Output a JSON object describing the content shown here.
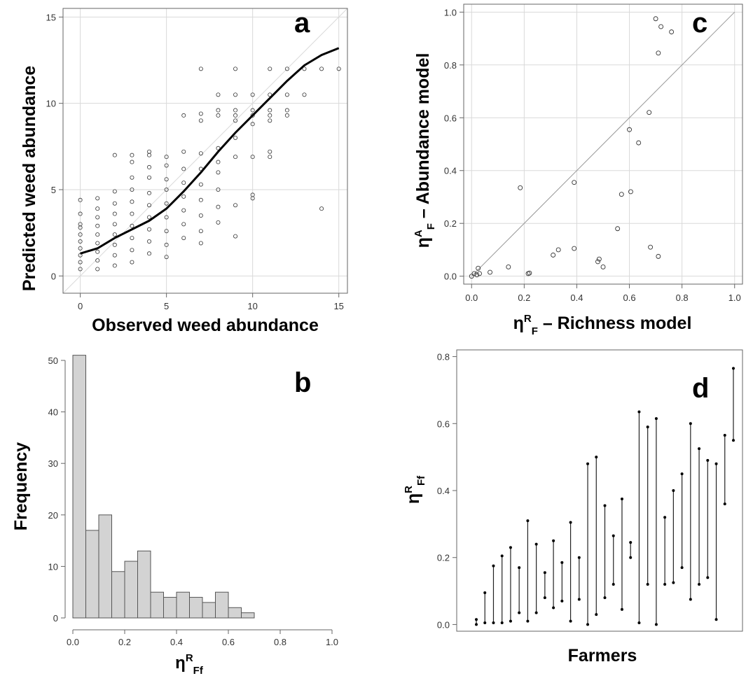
{
  "chart_data": [
    {
      "panel": "a",
      "type": "scatter",
      "xlabel": "Observed weed abundance",
      "ylabel": "Predicted weed abundance",
      "xlim": [
        -1,
        15.5
      ],
      "ylim": [
        -1,
        15.5
      ],
      "xticks": [
        0,
        5,
        10,
        15
      ],
      "yticks": [
        0,
        5,
        10,
        15
      ],
      "grid": true,
      "reference_line": "1:1",
      "points": [
        [
          0,
          0.4
        ],
        [
          0,
          0.8
        ],
        [
          0,
          1.2
        ],
        [
          0,
          1.6
        ],
        [
          0,
          2.0
        ],
        [
          0,
          2.4
        ],
        [
          0,
          2.8
        ],
        [
          0,
          3.0
        ],
        [
          0,
          3.6
        ],
        [
          0,
          4.4
        ],
        [
          1,
          0.4
        ],
        [
          1,
          0.9
        ],
        [
          1,
          1.4
        ],
        [
          1,
          1.9
        ],
        [
          1,
          2.4
        ],
        [
          1,
          2.9
        ],
        [
          1,
          3.4
        ],
        [
          1,
          3.9
        ],
        [
          1,
          4.5
        ],
        [
          2,
          0.6
        ],
        [
          2,
          1.2
        ],
        [
          2,
          1.8
        ],
        [
          2,
          2.4
        ],
        [
          2,
          3.0
        ],
        [
          2,
          3.6
        ],
        [
          2,
          4.2
        ],
        [
          2,
          4.9
        ],
        [
          2,
          7.0
        ],
        [
          3,
          0.8
        ],
        [
          3,
          1.5
        ],
        [
          3,
          2.2
        ],
        [
          3,
          2.9
        ],
        [
          3,
          3.6
        ],
        [
          3,
          4.3
        ],
        [
          3,
          5.0
        ],
        [
          3,
          5.7
        ],
        [
          3,
          6.6
        ],
        [
          3,
          7.0
        ],
        [
          4,
          1.3
        ],
        [
          4,
          2.0
        ],
        [
          4,
          2.7
        ],
        [
          4,
          3.4
        ],
        [
          4,
          4.1
        ],
        [
          4,
          4.8
        ],
        [
          4,
          5.7
        ],
        [
          4,
          6.3
        ],
        [
          4,
          7.0
        ],
        [
          4,
          7.2
        ],
        [
          5,
          1.1
        ],
        [
          5,
          1.8
        ],
        [
          5,
          2.6
        ],
        [
          5,
          3.4
        ],
        [
          5,
          4.2
        ],
        [
          5,
          5.0
        ],
        [
          5,
          5.6
        ],
        [
          5,
          6.4
        ],
        [
          5,
          6.9
        ],
        [
          6,
          2.2
        ],
        [
          6,
          3.0
        ],
        [
          6,
          3.8
        ],
        [
          6,
          4.6
        ],
        [
          6,
          5.4
        ],
        [
          6,
          6.2
        ],
        [
          6,
          7.2
        ],
        [
          6,
          9.3
        ],
        [
          7,
          1.9
        ],
        [
          7,
          2.6
        ],
        [
          7,
          3.5
        ],
        [
          7,
          4.4
        ],
        [
          7,
          5.3
        ],
        [
          7,
          6.2
        ],
        [
          7,
          7.1
        ],
        [
          7,
          9.0
        ],
        [
          7,
          9.4
        ],
        [
          7,
          12.0
        ],
        [
          8,
          3.1
        ],
        [
          8,
          4.0
        ],
        [
          8,
          5.0
        ],
        [
          8,
          6.0
        ],
        [
          8,
          6.6
        ],
        [
          8,
          7.4
        ],
        [
          8,
          9.3
        ],
        [
          8,
          9.6
        ],
        [
          8,
          10.5
        ],
        [
          9,
          2.3
        ],
        [
          9,
          4.1
        ],
        [
          9,
          6.9
        ],
        [
          9,
          8.0
        ],
        [
          9,
          9.0
        ],
        [
          9,
          9.3
        ],
        [
          9,
          9.6
        ],
        [
          9,
          10.5
        ],
        [
          9,
          12.0
        ],
        [
          10,
          4.5
        ],
        [
          10,
          4.7
        ],
        [
          10,
          6.9
        ],
        [
          10,
          8.8
        ],
        [
          10,
          9.3
        ],
        [
          10,
          9.6
        ],
        [
          10,
          10.5
        ],
        [
          11,
          6.9
        ],
        [
          11,
          7.2
        ],
        [
          11,
          9.0
        ],
        [
          11,
          9.3
        ],
        [
          11,
          9.6
        ],
        [
          11,
          10.5
        ],
        [
          11,
          12.0
        ],
        [
          12,
          9.3
        ],
        [
          12,
          9.6
        ],
        [
          12,
          10.5
        ],
        [
          12,
          12.0
        ],
        [
          13,
          10.5
        ],
        [
          13,
          12.0
        ],
        [
          14,
          3.9
        ],
        [
          14,
          12.0
        ],
        [
          15,
          12.0
        ]
      ],
      "smooth_curve": [
        [
          0,
          1.3
        ],
        [
          1,
          1.6
        ],
        [
          2,
          2.2
        ],
        [
          3,
          2.7
        ],
        [
          4,
          3.2
        ],
        [
          5,
          3.9
        ],
        [
          6,
          4.9
        ],
        [
          7,
          6.0
        ],
        [
          8,
          7.2
        ],
        [
          9,
          8.3
        ],
        [
          10,
          9.3
        ],
        [
          11,
          10.3
        ],
        [
          12,
          11.3
        ],
        [
          13,
          12.2
        ],
        [
          14,
          12.8
        ],
        [
          15,
          13.2
        ]
      ]
    },
    {
      "panel": "b",
      "type": "bar",
      "subtype": "histogram",
      "xlabel": "ηRFf",
      "ylabel": "Frequency",
      "xlim": [
        0,
        1
      ],
      "ylim": [
        0,
        52
      ],
      "xticks": [
        0.0,
        0.2,
        0.4,
        0.6,
        0.8,
        1.0
      ],
      "yticks": [
        0,
        10,
        20,
        30,
        40,
        50
      ],
      "bin_width": 0.05,
      "bin_starts": [
        0.0,
        0.05,
        0.1,
        0.15,
        0.2,
        0.25,
        0.3,
        0.35,
        0.4,
        0.45,
        0.5,
        0.55,
        0.6,
        0.65
      ],
      "values": [
        51,
        17,
        20,
        9,
        11,
        13,
        5,
        4,
        5,
        4,
        3,
        5,
        2,
        1
      ]
    },
    {
      "panel": "c",
      "type": "scatter",
      "xlabel": "ηRF – Richness model",
      "ylabel": "ηAF – Abundance model",
      "xlim": [
        -0.03,
        1.03
      ],
      "ylim": [
        -0.03,
        1.03
      ],
      "xticks": [
        0.0,
        0.2,
        0.4,
        0.6,
        0.8,
        1.0
      ],
      "yticks": [
        0.0,
        0.2,
        0.4,
        0.6,
        0.8,
        1.0
      ],
      "grid": true,
      "reference_line": "1:1",
      "points": [
        [
          0.0,
          0.0
        ],
        [
          0.01,
          0.01
        ],
        [
          0.02,
          0.005
        ],
        [
          0.025,
          0.03
        ],
        [
          0.03,
          0.01
        ],
        [
          0.07,
          0.015
        ],
        [
          0.14,
          0.035
        ],
        [
          0.185,
          0.335
        ],
        [
          0.215,
          0.01
        ],
        [
          0.22,
          0.012
        ],
        [
          0.31,
          0.08
        ],
        [
          0.33,
          0.1
        ],
        [
          0.39,
          0.355
        ],
        [
          0.39,
          0.105
        ],
        [
          0.48,
          0.055
        ],
        [
          0.485,
          0.065
        ],
        [
          0.5,
          0.035
        ],
        [
          0.555,
          0.18
        ],
        [
          0.57,
          0.31
        ],
        [
          0.6,
          0.555
        ],
        [
          0.605,
          0.32
        ],
        [
          0.635,
          0.505
        ],
        [
          0.675,
          0.62
        ],
        [
          0.68,
          0.11
        ],
        [
          0.7,
          0.975
        ],
        [
          0.71,
          0.075
        ],
        [
          0.71,
          0.845
        ],
        [
          0.72,
          0.945
        ],
        [
          0.76,
          0.925
        ]
      ]
    },
    {
      "panel": "d",
      "type": "scatter",
      "subtype": "range",
      "xlabel": "Farmers",
      "ylabel": "ηRFf",
      "ylim": [
        -0.02,
        0.82
      ],
      "yticks": [
        0.0,
        0.2,
        0.4,
        0.6,
        0.8
      ],
      "ranges": [
        [
          0.0,
          0.015
        ],
        [
          0.005,
          0.095
        ],
        [
          0.005,
          0.175
        ],
        [
          0.005,
          0.205
        ],
        [
          0.01,
          0.23
        ],
        [
          0.035,
          0.17
        ],
        [
          0.01,
          0.31
        ],
        [
          0.035,
          0.24
        ],
        [
          0.08,
          0.155
        ],
        [
          0.05,
          0.25
        ],
        [
          0.07,
          0.185
        ],
        [
          0.01,
          0.305
        ],
        [
          0.075,
          0.2
        ],
        [
          0.0,
          0.48
        ],
        [
          0.03,
          0.5
        ],
        [
          0.08,
          0.355
        ],
        [
          0.12,
          0.265
        ],
        [
          0.045,
          0.375
        ],
        [
          0.2,
          0.245
        ],
        [
          0.005,
          0.635
        ],
        [
          0.12,
          0.59
        ],
        [
          0.0,
          0.615
        ],
        [
          0.12,
          0.32
        ],
        [
          0.125,
          0.4
        ],
        [
          0.17,
          0.45
        ],
        [
          0.075,
          0.6
        ],
        [
          0.12,
          0.525
        ],
        [
          0.14,
          0.49
        ],
        [
          0.015,
          0.48
        ],
        [
          0.36,
          0.565
        ],
        [
          0.55,
          0.765
        ]
      ]
    }
  ]
}
